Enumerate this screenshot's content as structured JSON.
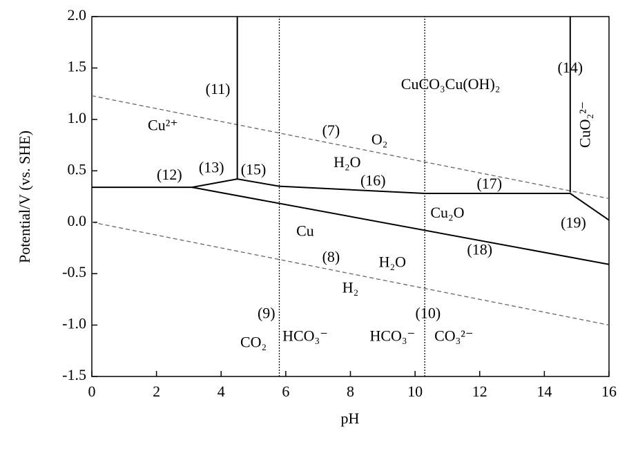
{
  "chart_data": {
    "type": "line",
    "x_label": "pH",
    "y_label": "Potential/V (vs. SHE)",
    "xlim": [
      0,
      16
    ],
    "ylim": [
      -1.5,
      2.0
    ],
    "xticks": [
      0,
      2,
      4,
      6,
      8,
      10,
      12,
      14,
      16
    ],
    "yticks": [
      {
        "value": 2.0,
        "label": "2.0"
      },
      1.5,
      {
        "value": 1.0,
        "label": "1.0"
      },
      0.5,
      {
        "value": 0,
        "label": "0.0"
      },
      -0.5,
      {
        "value": -1.0,
        "label": "-1.0"
      },
      -1.5
    ],
    "grid": false,
    "series": [
      {
        "color": "#666666",
        "dash": "dashed",
        "x": [
          0,
          16
        ],
        "values": [
          1.23,
          0.23
        ]
      },
      {
        "color": "#666666",
        "dash": "dashed",
        "x": [
          0,
          16
        ],
        "values": [
          0,
          -1.0
        ]
      },
      {
        "color": "#000000",
        "dash": "solid",
        "x": [
          0,
          3.1,
          4.5,
          5.8,
          10.3,
          14.8,
          16
        ],
        "values": [
          0.34,
          0.34,
          0.42,
          0.35,
          0.28,
          0.28,
          0.02
        ]
      },
      {
        "color": "#000000",
        "dash": "solid",
        "x": [
          3.1,
          16
        ],
        "values": [
          0.34,
          -0.41
        ]
      },
      {
        "color": "#000000",
        "dash": "solid",
        "x": [
          4.5,
          4.5
        ],
        "values": [
          0.42,
          2.0
        ]
      },
      {
        "color": "#000000",
        "dash": "solid",
        "x": [
          14.8,
          14.8
        ],
        "values": [
          0.29,
          2.0
        ]
      },
      {
        "color": "#000000",
        "dash": "dotted",
        "x": [
          5.8,
          5.8
        ],
        "values": [
          -1.5,
          2.0
        ]
      },
      {
        "color": "#000000",
        "dash": "dotted",
        "x": [
          10.3,
          10.3
        ],
        "values": [
          -1.5,
          2.0
        ]
      }
    ],
    "annotations": [
      "(11)",
      "Cu²⁺",
      "(12)",
      "(13)",
      "(15)",
      "(7)",
      "O₂",
      "H₂O",
      "(16)",
      "CuCO₃Cu(OH)₂",
      "(14)",
      "CuO₂²⁻",
      "(17)",
      "Cu₂O",
      "(19)",
      "Cu",
      "(8)",
      "H₂O",
      "(18)",
      "H₂",
      "(9)",
      "(10)",
      "CO₂",
      "HCO₃⁻",
      "HCO₃⁻",
      "CO₃²⁻"
    ]
  }
}
